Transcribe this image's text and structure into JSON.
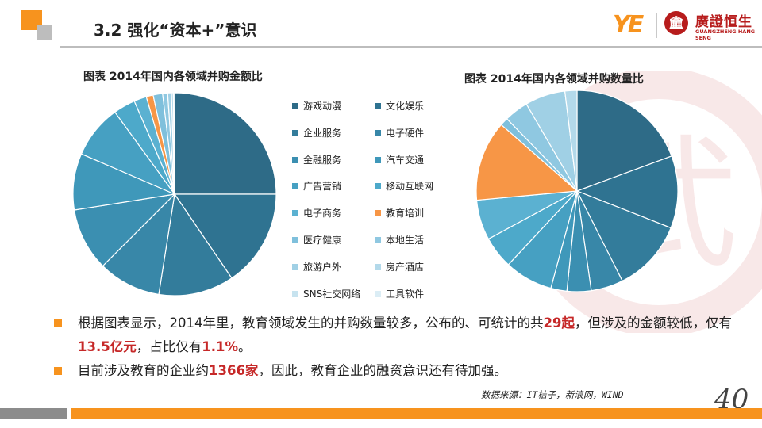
{
  "header": {
    "title": "3.2 强化“资本+”意识",
    "logo_ye": "YE",
    "logo_cn": "廣證恒生",
    "logo_en": "GUANGZHENG HANG SENG"
  },
  "colors": {
    "accent": "#f7931e",
    "highlight": "#c62828",
    "footer_gray": "#8c8c8c"
  },
  "chart_data": [
    {
      "type": "pie",
      "title": "图表 2014年国内各领域并购金额比",
      "categories": [
        "游戏动漫",
        "文化娱乐",
        "企业服务",
        "电子硬件",
        "金融服务",
        "汽车交通",
        "广告营销",
        "移动互联网",
        "电子商务",
        "教育培训",
        "医疗健康",
        "本地生活",
        "旅游户外",
        "房产酒店",
        "SNS社交网络",
        "工具软件"
      ],
      "values": [
        25.0,
        15.5,
        12.0,
        10.0,
        10.0,
        9.0,
        8.5,
        3.5,
        2.0,
        1.1,
        1.5,
        0.8,
        0.6,
        0.3,
        0.2,
        0.0
      ],
      "colors": [
        "#2e6b87",
        "#2f7391",
        "#337c9b",
        "#3887a8",
        "#3b8fb1",
        "#3f98ba",
        "#46a0c2",
        "#4da9ca",
        "#5bb1d1",
        "#f79646",
        "#7fc0dc",
        "#8fc8e1",
        "#a0d0e5",
        "#b3d9ea",
        "#c7e3ef",
        "#dbedf5"
      ],
      "legend_position": "right"
    },
    {
      "type": "pie",
      "title": "图表 2014年国内各领域并购数量比",
      "categories": [
        "游戏动漫",
        "文化娱乐",
        "企业服务",
        "电子硬件",
        "金融服务",
        "汽车交通",
        "广告营销",
        "移动互联网",
        "电子商务",
        "教育培训",
        "医疗健康",
        "本地生活",
        "旅游户外",
        "房产酒店",
        "SNS社交网络",
        "工具软件"
      ],
      "values": [
        15.0,
        9.0,
        9.0,
        4.0,
        3.0,
        2.0,
        6.0,
        4.0,
        5.0,
        10.0,
        1.0,
        3.0,
        5.0,
        1.5,
        0.0,
        0.0
      ],
      "colors": [
        "#2e6b87",
        "#2f7391",
        "#337c9b",
        "#3887a8",
        "#3b8fb1",
        "#3f98ba",
        "#46a0c2",
        "#4da9ca",
        "#5bb1d1",
        "#f79646",
        "#7fc0dc",
        "#8fc8e1",
        "#a0d0e5",
        "#b3d9ea",
        "#c7e3ef",
        "#dbedf5"
      ]
    }
  ],
  "bullets": [
    {
      "parts": [
        {
          "text": "根据图表显示，2014年里，教育领域发生的并购数量较多，公布的、可统计的共",
          "hl": false
        },
        {
          "text": "29起",
          "hl": true
        },
        {
          "text": "，但涉及的金额较低，仅有",
          "hl": false
        },
        {
          "text": "13.5亿元",
          "hl": true
        },
        {
          "text": "，占比仅有",
          "hl": false
        },
        {
          "text": "1.1%",
          "hl": true
        },
        {
          "text": "。",
          "hl": false
        }
      ]
    },
    {
      "parts": [
        {
          "text": "目前涉及教育的企业约",
          "hl": false
        },
        {
          "text": "1366家",
          "hl": true
        },
        {
          "text": "，因此，教育企业的融资意识还有待加强。",
          "hl": false
        }
      ]
    }
  ],
  "source": "数据来源：IT桔子，新浪网，WIND",
  "page_number": "40"
}
